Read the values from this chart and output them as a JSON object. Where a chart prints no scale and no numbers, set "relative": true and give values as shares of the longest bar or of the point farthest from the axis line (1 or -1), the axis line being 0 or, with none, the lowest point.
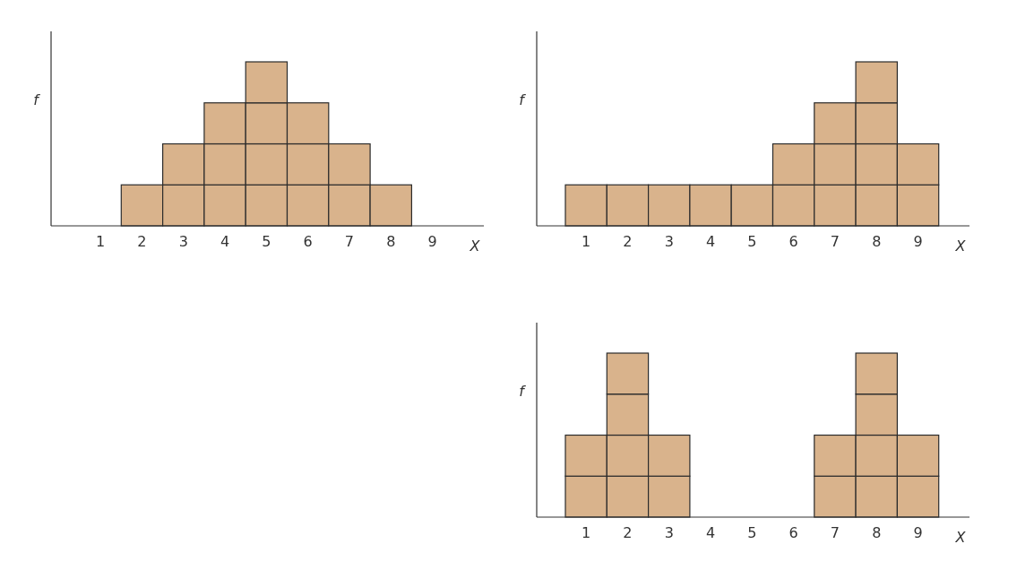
{
  "chart_data": [
    {
      "type": "bar",
      "categories": [
        "1",
        "2",
        "3",
        "4",
        "5",
        "6",
        "7",
        "8",
        "9"
      ],
      "xlabel": "X",
      "ylabel": "f",
      "stacked": true,
      "relative": true,
      "series": [
        {
          "color": "#d9b38c",
          "values": [
            null,
            0.25,
            0.25,
            0.25,
            0.25,
            0.25,
            0.25,
            0.25,
            null
          ]
        },
        {
          "color": "#d9b38c",
          "values": [
            null,
            null,
            0.25,
            0.25,
            0.25,
            0.25,
            0.25,
            null,
            null
          ]
        },
        {
          "color": "#d9b38c",
          "values": [
            null,
            null,
            null,
            0.25,
            0.25,
            0.25,
            null,
            null,
            null
          ]
        },
        {
          "color": "#d9b38c",
          "values": [
            null,
            null,
            null,
            null,
            0.25,
            null,
            null,
            null,
            null
          ]
        }
      ]
    },
    {
      "type": "bar",
      "categories": [
        "1",
        "2",
        "3",
        "4",
        "5",
        "6",
        "7",
        "8",
        "9"
      ],
      "xlabel": "X",
      "ylabel": "f",
      "stacked": true,
      "relative": true,
      "series": [
        {
          "color": "#d9b38c",
          "values": [
            0.25,
            0.25,
            0.25,
            0.25,
            0.25,
            0.25,
            0.25,
            0.25,
            0.25
          ]
        },
        {
          "color": "#d9b38c",
          "values": [
            null,
            null,
            null,
            null,
            null,
            0.25,
            0.25,
            0.25,
            0.25
          ]
        },
        {
          "color": "#d9b38c",
          "values": [
            null,
            null,
            null,
            null,
            null,
            null,
            0.25,
            0.25,
            null
          ]
        },
        {
          "color": "#d9b38c",
          "values": [
            null,
            null,
            null,
            null,
            null,
            null,
            null,
            0.25,
            null
          ]
        }
      ]
    },
    {
      "type": "bar",
      "categories": [
        "1",
        "2",
        "3",
        "4",
        "5",
        "6",
        "7",
        "8",
        "9"
      ],
      "xlabel": "X",
      "ylabel": "f",
      "stacked": true,
      "relative": true,
      "series": [
        {
          "color": "#d9b38c",
          "values": [
            0.25,
            0.25,
            0.25,
            null,
            null,
            null,
            0.25,
            0.25,
            0.25
          ]
        },
        {
          "color": "#d9b38c",
          "values": [
            0.25,
            0.25,
            0.25,
            null,
            null,
            null,
            0.25,
            0.25,
            0.25
          ]
        },
        {
          "color": "#d9b38c",
          "values": [
            null,
            0.25,
            null,
            null,
            null,
            null,
            null,
            0.25,
            null
          ]
        },
        {
          "color": "#d9b38c",
          "values": [
            null,
            0.25,
            null,
            null,
            null,
            null,
            null,
            0.25,
            null
          ]
        }
      ]
    }
  ]
}
